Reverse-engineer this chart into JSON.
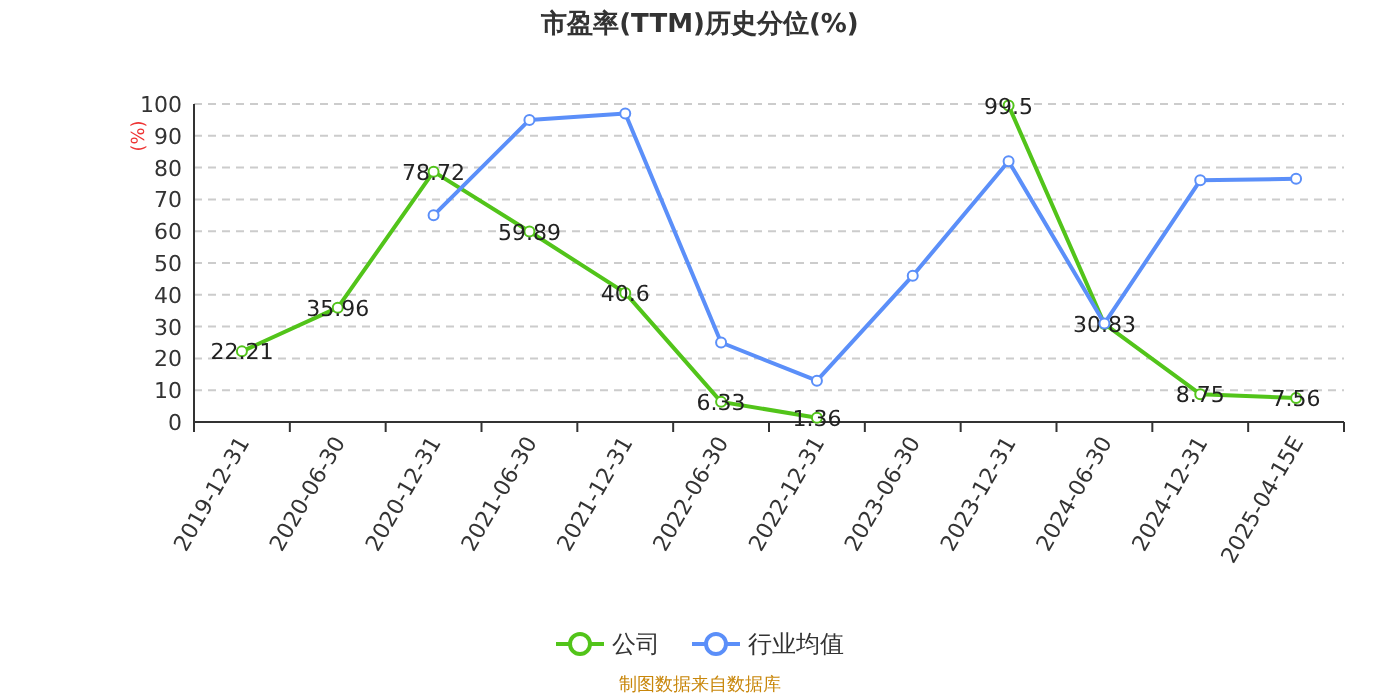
{
  "chart_data": {
    "type": "line",
    "title": "市盈率(TTM)历史分位(%)",
    "ylabel": "(%)",
    "categories": [
      "2019-12-31",
      "2020-06-30",
      "2020-12-31",
      "2021-06-30",
      "2021-12-31",
      "2022-06-30",
      "2022-12-31",
      "2023-06-30",
      "2023-12-31",
      "2024-06-30",
      "2024-12-31",
      "2025-04-15E"
    ],
    "series": [
      {
        "name": "公司",
        "color": "#52c41a",
        "values": [
          22.21,
          35.96,
          78.72,
          59.89,
          40.6,
          6.33,
          1.36,
          null,
          99.5,
          30.83,
          8.75,
          7.56
        ],
        "value_labels": [
          "22.21",
          "35.96",
          "78.72",
          "59.89",
          "40.6",
          "6.33",
          "1.36",
          null,
          "99.5",
          "30.83",
          "8.75",
          "7.56"
        ]
      },
      {
        "name": "行业均值",
        "color": "#5b8ff9",
        "values": [
          null,
          null,
          65,
          95,
          97,
          25,
          13,
          46,
          82,
          31,
          76,
          76.5
        ]
      }
    ],
    "ylim": [
      0,
      100
    ],
    "yticks": [
      0,
      10,
      20,
      30,
      40,
      50,
      60,
      70,
      80,
      90,
      100
    ],
    "grid": "y",
    "legend": "bottom",
    "marker": "circle",
    "line_style": "solid",
    "annotations": [
      "制图数据来自数据库"
    ]
  }
}
